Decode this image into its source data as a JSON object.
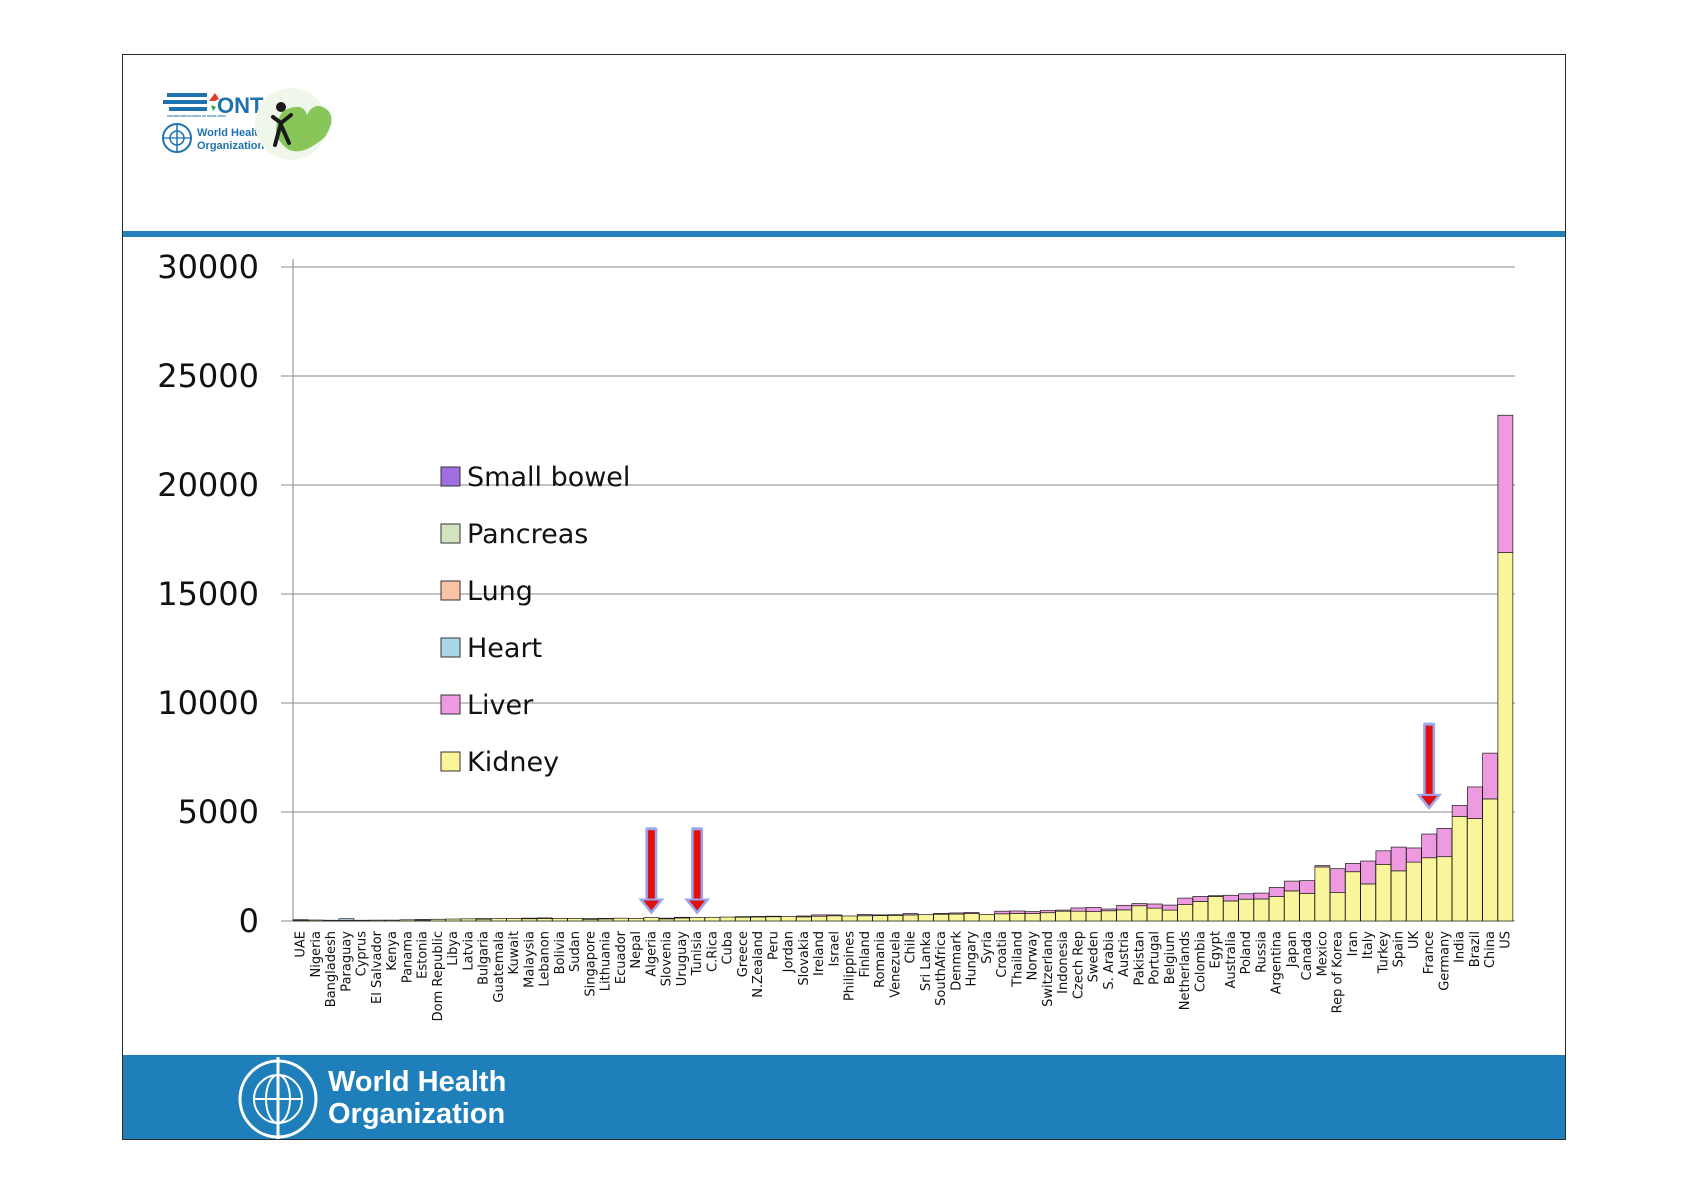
{
  "colors": {
    "Kidney": "#f8f59a",
    "Liver": "#ee9ae0",
    "Heart": "#a9d6e8",
    "Lung": "#f9c3a4",
    "Pancreas": "#d4e4c0",
    "Small bowel": "#9f6fe0",
    "accent_blue": "#2483bd",
    "arrow_red": "#e01010",
    "arrow_outline": "#9aa6ee"
  },
  "logos": {
    "ont_text": "ONT",
    "ont_subtitle": "ORGANIZACIÓN NACIONAL DE TRASPLANTES",
    "who_small_line1": "World Health",
    "who_small_line2": "Organization",
    "who_footer_line1": "World Health",
    "who_footer_line2": "Organization",
    "icons": [
      "ont-logo",
      "who-emblem",
      "heart-figure-logo"
    ]
  },
  "chart_data": {
    "type": "bar",
    "stacked": true,
    "ylim": [
      0,
      30000
    ],
    "yticks": [
      0,
      5000,
      10000,
      15000,
      20000,
      25000,
      30000
    ],
    "ytick_labels": [
      "0",
      "5000",
      "10000",
      "15000",
      "20000",
      "25000",
      "30000"
    ],
    "grid": true,
    "legend_position": "upper-left (inside plot)",
    "legend_order": [
      "Small bowel",
      "Pancreas",
      "Lung",
      "Heart",
      "Liver",
      "Kidney"
    ],
    "categories": [
      "UAE",
      "Nigeria",
      "Bangladesh",
      "Paraguay",
      "Cyprus",
      "El Salvador",
      "Kenya",
      "Panama",
      "Estonia",
      "Dom Republic",
      "Libya",
      "Latvia",
      "Bulgaria",
      "Guatemala",
      "Kuwait",
      "Malaysia",
      "Lebanon",
      "Bolivia",
      "Sudan",
      "Singapore",
      "Lithuania",
      "Ecuador",
      "Nepal",
      "Algeria",
      "Slovenia",
      "Uruguay",
      "Tunisia",
      "C.Rica",
      "Cuba",
      "Greece",
      "N.Zealand",
      "Peru",
      "Jordan",
      "Slovakia",
      "Ireland",
      "Israel",
      "Philippines",
      "Finland",
      "Romania",
      "Venezuela",
      "Chile",
      "Sri Lanka",
      "SouthAfrica",
      "Denmark",
      "Hungary",
      "Syria",
      "Croatia",
      "Thailand",
      "Norway",
      "Switzerland",
      "Indonesia",
      "Czech Rep",
      "Sweden",
      "S. Arabia",
      "Austria",
      "Pakistan",
      "Portugal",
      "Belgium",
      "Netherlands",
      "Colombia",
      "Egypt",
      "Australia",
      "Poland",
      "Russia",
      "Argentina",
      "Japan",
      "Canada",
      "Mexico",
      "Rep of Korea",
      "Iran",
      "Italy",
      "Turkey",
      "Spain",
      "UK",
      "France",
      "Germany",
      "India",
      "Brazil",
      "China",
      "US"
    ],
    "series": [
      {
        "name": "Kidney",
        "values": [
          40,
          45,
          35,
          25,
          35,
          40,
          40,
          55,
          60,
          80,
          90,
          100,
          100,
          110,
          120,
          110,
          130,
          120,
          120,
          80,
          110,
          130,
          120,
          160,
          100,
          140,
          160,
          170,
          180,
          180,
          190,
          200,
          210,
          190,
          220,
          240,
          230,
          240,
          250,
          260,
          280,
          290,
          310,
          320,
          340,
          300,
          330,
          350,
          340,
          380,
          450,
          450,
          430,
          470,
          510,
          700,
          590,
          500,
          750,
          900,
          1120,
          920,
          1000,
          1010,
          1120,
          1380,
          1270,
          2480,
          1300,
          2260,
          1700,
          2600,
          2300,
          2700,
          2900,
          2950,
          4800,
          4700,
          5600,
          16900
        ]
      },
      {
        "name": "Liver",
        "values": [
          20,
          0,
          0,
          0,
          0,
          0,
          0,
          0,
          5,
          0,
          0,
          0,
          10,
          0,
          0,
          20,
          10,
          0,
          0,
          30,
          10,
          0,
          0,
          0,
          30,
          30,
          0,
          0,
          0,
          20,
          20,
          20,
          0,
          40,
          60,
          40,
          0,
          60,
          30,
          30,
          60,
          0,
          40,
          50,
          50,
          0,
          120,
          110,
          90,
          100,
          50,
          150,
          190,
          80,
          210,
          100,
          190,
          230,
          300,
          230,
          40,
          260,
          250,
          270,
          420,
          450,
          580,
          60,
          1100,
          380,
          1050,
          620,
          1090,
          650,
          1090,
          1300,
          500,
          1450,
          2100,
          6300
        ]
      },
      {
        "name": "Heart",
        "values": [
          0,
          0,
          0,
          80,
          0,
          0,
          0,
          0,
          0,
          0,
          0,
          0,
          0,
          0,
          0,
          0,
          0,
          0,
          0,
          0,
          0,
          0,
          0,
          0,
          0,
          0,
          0,
          0,
          0,
          0,
          0,
          0,
          0,
          0,
          0,
          0,
          0,
          0,
          0,
          0,
          0,
          0,
          0,
          0,
          0,
          0,
          0,
          0,
          0,
          0,
          0,
          0,
          0,
          0,
          0,
          0,
          0,
          0,
          0,
          0,
          0,
          0,
          0,
          0,
          0,
          0,
          0,
          0,
          0,
          0,
          0,
          0,
          0,
          0,
          0,
          0,
          0,
          0,
          0,
          0
        ]
      },
      {
        "name": "Lung",
        "values": [
          0,
          0,
          0,
          0,
          0,
          0,
          0,
          0,
          0,
          0,
          0,
          0,
          0,
          0,
          0,
          0,
          0,
          0,
          0,
          0,
          0,
          0,
          0,
          0,
          0,
          0,
          0,
          0,
          0,
          0,
          0,
          0,
          0,
          0,
          0,
          0,
          0,
          0,
          0,
          0,
          0,
          0,
          0,
          0,
          0,
          0,
          0,
          0,
          0,
          0,
          0,
          0,
          0,
          0,
          0,
          0,
          0,
          0,
          0,
          0,
          0,
          0,
          0,
          0,
          0,
          0,
          0,
          0,
          0,
          0,
          0,
          0,
          0,
          0,
          0,
          0,
          0,
          0,
          0,
          0
        ]
      },
      {
        "name": "Pancreas",
        "values": [
          0,
          0,
          0,
          0,
          0,
          0,
          0,
          0,
          0,
          0,
          0,
          0,
          0,
          0,
          0,
          0,
          0,
          0,
          0,
          0,
          0,
          0,
          0,
          0,
          0,
          0,
          0,
          0,
          0,
          0,
          0,
          0,
          0,
          0,
          0,
          0,
          0,
          0,
          0,
          0,
          0,
          0,
          0,
          0,
          0,
          0,
          0,
          0,
          0,
          0,
          0,
          0,
          0,
          0,
          0,
          0,
          0,
          0,
          0,
          0,
          0,
          0,
          0,
          0,
          0,
          0,
          0,
          0,
          0,
          0,
          0,
          0,
          0,
          0,
          0,
          0,
          0,
          0,
          0,
          0
        ]
      },
      {
        "name": "Small bowel",
        "values": [
          0,
          0,
          0,
          0,
          0,
          0,
          0,
          0,
          0,
          0,
          0,
          0,
          0,
          0,
          0,
          0,
          0,
          0,
          0,
          0,
          0,
          0,
          0,
          0,
          0,
          0,
          0,
          0,
          0,
          0,
          0,
          0,
          0,
          0,
          0,
          0,
          0,
          0,
          0,
          0,
          0,
          0,
          0,
          0,
          0,
          0,
          0,
          0,
          0,
          0,
          0,
          0,
          0,
          0,
          0,
          0,
          0,
          0,
          0,
          0,
          0,
          0,
          0,
          0,
          0,
          0,
          0,
          0,
          0,
          0,
          0,
          0,
          0,
          0,
          0,
          0,
          0,
          0,
          0,
          0
        ]
      }
    ],
    "annotations": [
      {
        "type": "arrow",
        "category": "Algeria",
        "from_value": 4300,
        "to_value": 300
      },
      {
        "type": "arrow",
        "category": "Tunisia",
        "from_value": 4300,
        "to_value": 300
      },
      {
        "type": "arrow",
        "category": "France",
        "from_value": 9100,
        "to_value": 5100
      }
    ]
  }
}
